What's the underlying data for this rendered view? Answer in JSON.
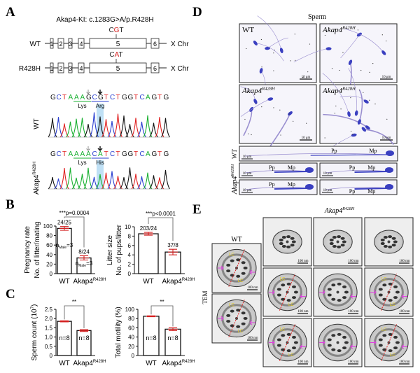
{
  "panel_labels": {
    "a": "A",
    "b": "B",
    "c": "C",
    "d": "D",
    "e": "E"
  },
  "panel_a": {
    "title": "Akap4-KI: c.1283G>A/p.R428H",
    "rows": [
      {
        "label": "WT",
        "codon": [
          "C",
          "G",
          "T"
        ],
        "chr": "X Chr"
      },
      {
        "label": "R428H",
        "codon": [
          "C",
          "A",
          "T"
        ],
        "chr": "X Chr"
      }
    ],
    "exons": [
      "1",
      "2",
      "3",
      "4",
      "5",
      "6"
    ],
    "mutation_color": "#d42020",
    "base_colors": {
      "G": "#111111",
      "C": "#2a3fd0",
      "T": "#e02020",
      "A": "#18b030"
    },
    "traces": [
      {
        "label": "WT",
        "label_sup": "",
        "sequence": "GCTAAAGCGTCTGGTCAGTG",
        "aa1": "Lys",
        "aa2": "Arg"
      },
      {
        "label": "Akap4",
        "label_sup": "R428H",
        "sequence": "GCTAAAACATCTGGTCAGTG",
        "aa1": "Lys",
        "aa2": "His"
      }
    ]
  },
  "chart_data": [
    {
      "type": "bar",
      "ylabel": [
        "Pregnancy rate",
        "No. of litter/mating"
      ],
      "categories": [
        "WT",
        "Akap4"
      ],
      "category_sup": [
        "",
        "R428H"
      ],
      "values": [
        95,
        33
      ],
      "errors": [
        4,
        4.5
      ],
      "bar_labels": [
        "24/25",
        "8/24"
      ],
      "inside": [
        {
          "n": "n",
          "sub": "Male",
          "rest": "=3"
        },
        {
          "n": "n",
          "sub": "Male",
          "rest": "=3"
        }
      ],
      "ylim": [
        0,
        100
      ],
      "yticks": [
        "0",
        "20",
        "40",
        "60",
        "80",
        "100"
      ],
      "significance": "***p=0.0004"
    },
    {
      "type": "bar",
      "ylabel": [
        "Litter size",
        "No. of pups/litter"
      ],
      "categories": [
        "WT",
        "Akap4"
      ],
      "category_sup": [
        "",
        "R428H"
      ],
      "values": [
        8.5,
        4.6
      ],
      "errors": [
        0.3,
        0.6
      ],
      "bar_labels": [
        "203/24",
        "37/8"
      ],
      "inside": [],
      "ylim": [
        0,
        10
      ],
      "yticks": [
        "0",
        "2",
        "4",
        "6",
        "8",
        "10"
      ],
      "significance": "***p<0.0001"
    },
    {
      "type": "bar",
      "ylabel": [
        "Sperm count (10",
        "7",
        ")"
      ],
      "categories": [
        "WT",
        "Akap4"
      ],
      "category_sup": [
        "",
        "R428H"
      ],
      "values": [
        1.85,
        1.35
      ],
      "errors": [
        0.03,
        0.05
      ],
      "bar_labels": [],
      "inside": [
        {
          "n": "n=8",
          "sub": "",
          "rest": ""
        },
        {
          "n": "n=8",
          "sub": "",
          "rest": ""
        }
      ],
      "ylim": [
        0,
        2.5
      ],
      "yticks": [
        "0",
        "0.5",
        "1.0",
        "1.5",
        "2.0",
        "2.5"
      ],
      "significance": "**"
    },
    {
      "type": "bar",
      "ylabel": [
        "Total motility (%)"
      ],
      "categories": [
        "WT",
        "Akap4"
      ],
      "category_sup": [
        "",
        "R428H"
      ],
      "values": [
        85,
        57
      ],
      "errors": [
        1,
        3
      ],
      "bar_labels": [],
      "inside": [
        {
          "n": "n=8",
          "sub": "",
          "rest": ""
        },
        {
          "n": "n=8",
          "sub": "",
          "rest": ""
        }
      ],
      "ylim": [
        0,
        100
      ],
      "yticks": [
        "0",
        "20",
        "40",
        "60",
        "80",
        "100"
      ],
      "significance": "**"
    }
  ],
  "chart_colors": {
    "error_bar": "#d42020",
    "bar_fill": "#ffffff",
    "bar_stroke": "#111111"
  },
  "panel_d": {
    "title": "Sperm",
    "grid": [
      {
        "label": "WT",
        "sup": "",
        "scale": "10 μm"
      },
      {
        "label": "Akap4",
        "sup": "R428H",
        "scale": "10 μm"
      },
      {
        "label": "Akap4",
        "sup": "R428H",
        "scale": "10 μm"
      },
      {
        "label": "Akap4",
        "sup": "R428H",
        "scale": "10 μm"
      }
    ],
    "wt_row_label": "WT",
    "mut_row_label": "Akap4",
    "mut_row_sup": "R428H",
    "strips": [
      {
        "scale": "10 μm",
        "pp": "Pp",
        "mp": "Mp"
      },
      {
        "scale": "10 μm",
        "pp": "Pp",
        "mp": "Mp"
      },
      {
        "scale": "10 μm",
        "pp": "Pp",
        "mp": "Mp"
      },
      {
        "scale": "10 μm",
        "pp": "Pp",
        "mp": "Mp"
      },
      {
        "scale": "10 μm",
        "pp": "Pp",
        "mp": "Mp"
      }
    ],
    "stain_color": "#3a3fc0"
  },
  "panel_e": {
    "side_label": "TEM",
    "wt_title": "WT",
    "mut_title": "Akap4",
    "mut_sup": "R428H",
    "scale": "100 nm",
    "lc": "LC",
    "annotation_colors": {
      "line": "#e02020",
      "arrow": "#e040e0",
      "lc": "#e8d020"
    }
  }
}
